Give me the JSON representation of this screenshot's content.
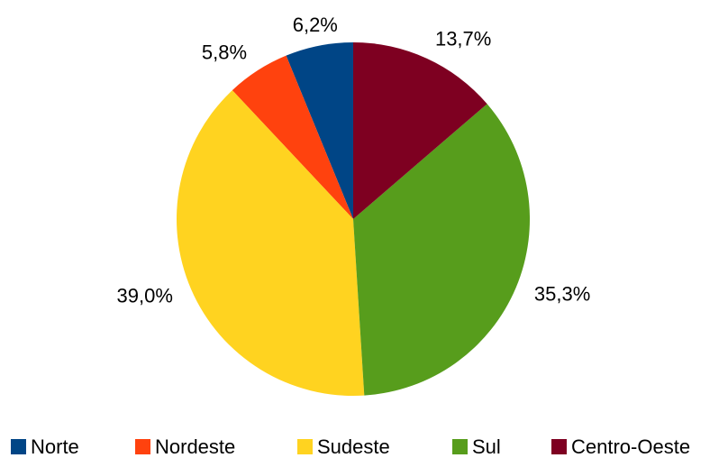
{
  "chart_data": {
    "type": "pie",
    "categories": [
      "Norte",
      "Nordeste",
      "Sudeste",
      "Sul",
      "Centro-Oeste"
    ],
    "values": [
      6.2,
      5.8,
      39.0,
      35.3,
      13.7
    ],
    "value_labels": [
      "6,2%",
      "5,8%",
      "39,0%",
      "35,3%",
      "13,7%"
    ],
    "colors": [
      "#004586",
      "#ff420e",
      "#ffd320",
      "#579d1c",
      "#7e0021"
    ],
    "legend": "bottom"
  }
}
